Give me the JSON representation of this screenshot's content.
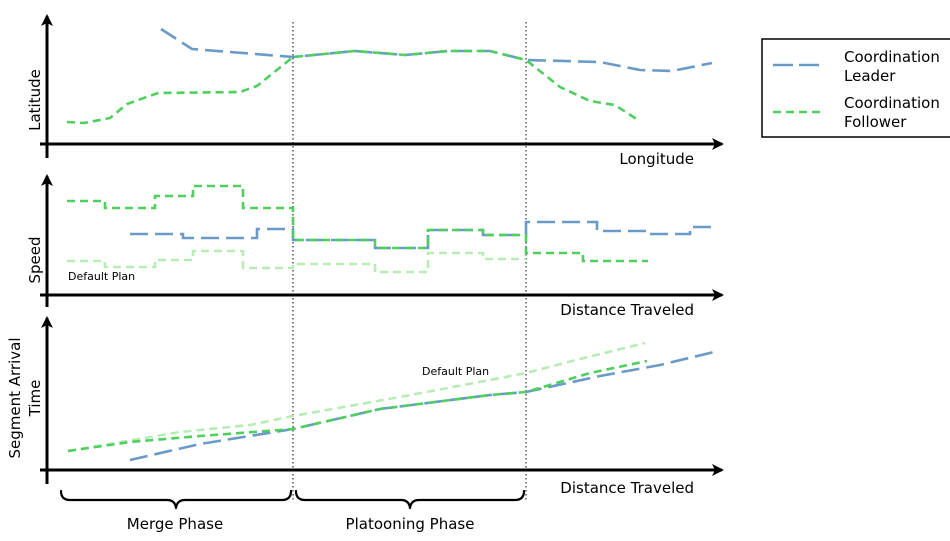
{
  "legend": {
    "leader": "Coordination Leader",
    "leader_line1": "Coordination",
    "leader_line2": "Leader",
    "follower": "Coordination Follower",
    "follower_line1": "Coordination",
    "follower_line2": "Follower"
  },
  "panels": {
    "top": {
      "ylabel": "Latitude",
      "xlabel": "Longitude"
    },
    "middle": {
      "ylabel": "Speed",
      "xlabel": "Distance Traveled",
      "annotation": "Default Plan"
    },
    "bottom": {
      "ylabel_line1": "Segment Arrival",
      "ylabel_line2": "Time",
      "xlabel": "Distance Traveled",
      "annotation": "Default Plan"
    }
  },
  "phases": {
    "merge": "Merge Phase",
    "platooning": "Platooning Phase"
  },
  "colors": {
    "leader": "#6a9ac8",
    "follower": "#4fcf5e",
    "default_plan": "#b7ecb5"
  },
  "chart_data": [
    {
      "type": "line",
      "xlabel": "Longitude",
      "ylabel": "Latitude",
      "series": [
        {
          "name": "Coordination Leader"
        },
        {
          "name": "Coordination Follower"
        }
      ]
    },
    {
      "type": "line",
      "xlabel": "Distance Traveled",
      "ylabel": "Speed",
      "series": [
        {
          "name": "Coordination Leader"
        },
        {
          "name": "Coordination Follower"
        },
        {
          "name": "Default Plan"
        }
      ]
    },
    {
      "type": "line",
      "xlabel": "Distance Traveled",
      "ylabel": "Segment Arrival Time",
      "series": [
        {
          "name": "Coordination Leader"
        },
        {
          "name": "Coordination Follower"
        },
        {
          "name": "Default Plan"
        }
      ]
    }
  ]
}
